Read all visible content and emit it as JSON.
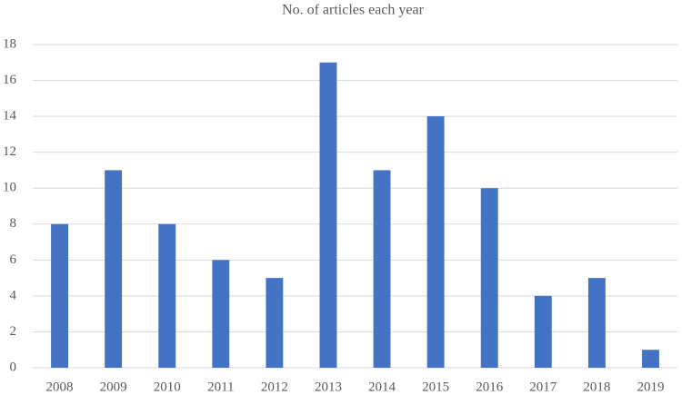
{
  "chart_data": {
    "type": "bar",
    "title": "No. of articles each year",
    "categories": [
      "2008",
      "2009",
      "2010",
      "2011",
      "2012",
      "2013",
      "2014",
      "2015",
      "2016",
      "2017",
      "2018",
      "2019"
    ],
    "values": [
      8,
      11,
      8,
      6,
      5,
      17,
      11,
      14,
      10,
      4,
      5,
      1
    ],
    "color": "#4472c4",
    "ylim": [
      0,
      18
    ],
    "yticks": [
      0,
      2,
      4,
      6,
      8,
      10,
      12,
      14,
      16,
      18
    ],
    "grid": true
  }
}
